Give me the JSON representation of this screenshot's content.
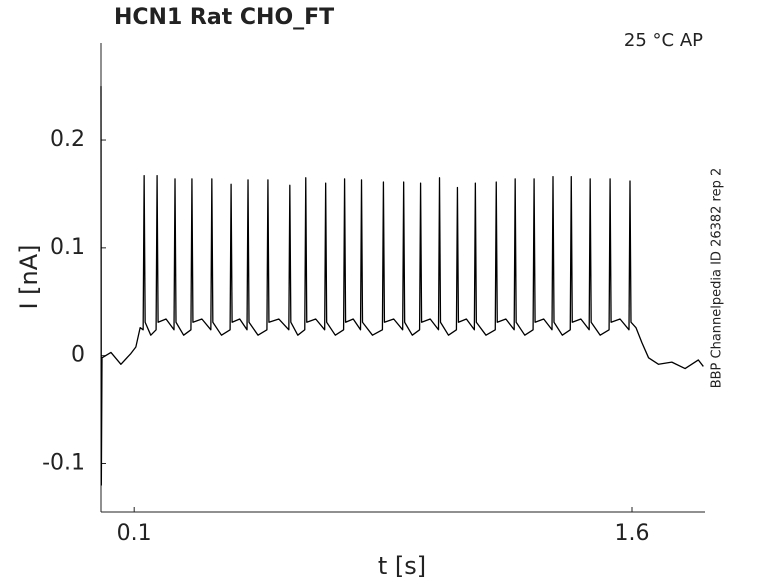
{
  "chart_data": {
    "type": "line",
    "title": "HCN1  Rat  CHO_FT",
    "annotation": "25 °C  AP",
    "side_note": "BBP Channelpedia ID 26382 rep 2",
    "x_label": "t [s]",
    "y_label": "I [nA]",
    "color": "#000000",
    "xlim": [
      0,
      1.82
    ],
    "ylim": [
      -0.145,
      0.29
    ],
    "xticks": [
      0.1,
      1.6
    ],
    "yticks": [
      -0.1,
      0,
      0.1,
      0.2
    ],
    "x": [
      0,
      0.001,
      0.003,
      0.03,
      0.06,
      0.09,
      0.105,
      0.118,
      0.127,
      0.13,
      0.133,
      0.15,
      0.166,
      0.169,
      0.172,
      0.196,
      0.22,
      0.223,
      0.226,
      0.249,
      0.271,
      0.274,
      0.277,
      0.304,
      0.331,
      0.334,
      0.337,
      0.363,
      0.389,
      0.392,
      0.395,
      0.418,
      0.44,
      0.443,
      0.446,
      0.473,
      0.5,
      0.503,
      0.506,
      0.536,
      0.566,
      0.569,
      0.572,
      0.593,
      0.614,
      0.617,
      0.62,
      0.647,
      0.674,
      0.677,
      0.68,
      0.706,
      0.731,
      0.734,
      0.737,
      0.76,
      0.782,
      0.785,
      0.788,
      0.818,
      0.848,
      0.851,
      0.854,
      0.882,
      0.909,
      0.912,
      0.915,
      0.938,
      0.96,
      0.963,
      0.966,
      0.992,
      1.017,
      1.02,
      1.023,
      1.047,
      1.071,
      1.074,
      1.077,
      1.101,
      1.125,
      1.128,
      1.131,
      1.16,
      1.188,
      1.191,
      1.194,
      1.22,
      1.245,
      1.248,
      1.251,
      1.277,
      1.302,
      1.305,
      1.308,
      1.334,
      1.359,
      1.362,
      1.365,
      1.39,
      1.414,
      1.417,
      1.42,
      1.446,
      1.471,
      1.474,
      1.477,
      1.504,
      1.531,
      1.534,
      1.537,
      1.564,
      1.591,
      1.594,
      1.597,
      1.612,
      1.63,
      1.65,
      1.68,
      1.72,
      1.76,
      1.8,
      1.815
    ],
    "values": [
      0.25,
      -0.12,
      -0.002,
      0.003,
      -0.008,
      0.002,
      0.008,
      0.026,
      0.024,
      0.167,
      0.031,
      0.019,
      0.024,
      0.167,
      0.031,
      0.034,
      0.024,
      0.164,
      0.031,
      0.019,
      0.024,
      0.164,
      0.031,
      0.034,
      0.024,
      0.164,
      0.031,
      0.019,
      0.024,
      0.159,
      0.031,
      0.034,
      0.024,
      0.163,
      0.031,
      0.019,
      0.024,
      0.163,
      0.031,
      0.034,
      0.024,
      0.158,
      0.031,
      0.019,
      0.024,
      0.165,
      0.031,
      0.034,
      0.024,
      0.16,
      0.031,
      0.019,
      0.024,
      0.164,
      0.031,
      0.034,
      0.024,
      0.163,
      0.031,
      0.019,
      0.024,
      0.161,
      0.031,
      0.034,
      0.024,
      0.161,
      0.031,
      0.019,
      0.024,
      0.16,
      0.031,
      0.034,
      0.024,
      0.165,
      0.031,
      0.019,
      0.024,
      0.156,
      0.031,
      0.034,
      0.024,
      0.16,
      0.031,
      0.019,
      0.024,
      0.161,
      0.031,
      0.034,
      0.024,
      0.164,
      0.031,
      0.019,
      0.024,
      0.164,
      0.031,
      0.034,
      0.024,
      0.166,
      0.031,
      0.019,
      0.024,
      0.166,
      0.031,
      0.034,
      0.024,
      0.164,
      0.031,
      0.019,
      0.024,
      0.164,
      0.031,
      0.034,
      0.024,
      0.162,
      0.031,
      0.026,
      0.012,
      -0.002,
      -0.008,
      -0.006,
      -0.012,
      -0.004,
      -0.01
    ]
  }
}
